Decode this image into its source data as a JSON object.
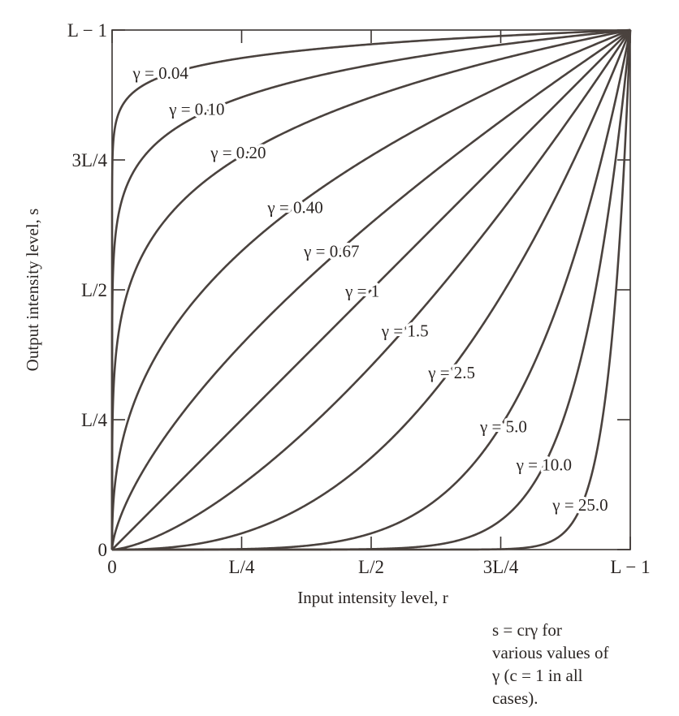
{
  "chart_data": {
    "type": "line",
    "title": "",
    "xlabel": "Input intensity level, r",
    "ylabel": "Output intensity level, s",
    "xlim": [
      0,
      1
    ],
    "ylim": [
      0,
      1
    ],
    "x_ticks": [
      {
        "value": 0,
        "label": "0"
      },
      {
        "value": 0.25,
        "label": "L/4"
      },
      {
        "value": 0.5,
        "label": "L/2"
      },
      {
        "value": 0.75,
        "label": "3L/4"
      },
      {
        "value": 1,
        "label": "L − 1"
      }
    ],
    "y_ticks": [
      {
        "value": 0,
        "label": "0"
      },
      {
        "value": 0.25,
        "label": "L/4"
      },
      {
        "value": 0.5,
        "label": "L/2"
      },
      {
        "value": 0.75,
        "label": "3L/4"
      },
      {
        "value": 1,
        "label": "L − 1"
      }
    ],
    "grid": false,
    "series": [
      {
        "gamma": 0.04,
        "label": "γ = 0.04"
      },
      {
        "gamma": 0.1,
        "label": "γ = 0.10"
      },
      {
        "gamma": 0.2,
        "label": "γ = 0.20"
      },
      {
        "gamma": 0.4,
        "label": "γ = 0.40"
      },
      {
        "gamma": 0.67,
        "label": "γ = 0.67"
      },
      {
        "gamma": 1,
        "label": "γ = 1"
      },
      {
        "gamma": 1.5,
        "label": "γ = 1.5"
      },
      {
        "gamma": 2.5,
        "label": "γ = 2.5"
      },
      {
        "gamma": 5.0,
        "label": "γ = 5.0"
      },
      {
        "gamma": 10.0,
        "label": "γ = 10.0"
      },
      {
        "gamma": 25.0,
        "label": "γ = 25.0"
      }
    ]
  },
  "caption": {
    "line1": "s = crγ for",
    "line2": "various values of",
    "line3": "γ (c = 1 in all",
    "line4": "cases)."
  }
}
